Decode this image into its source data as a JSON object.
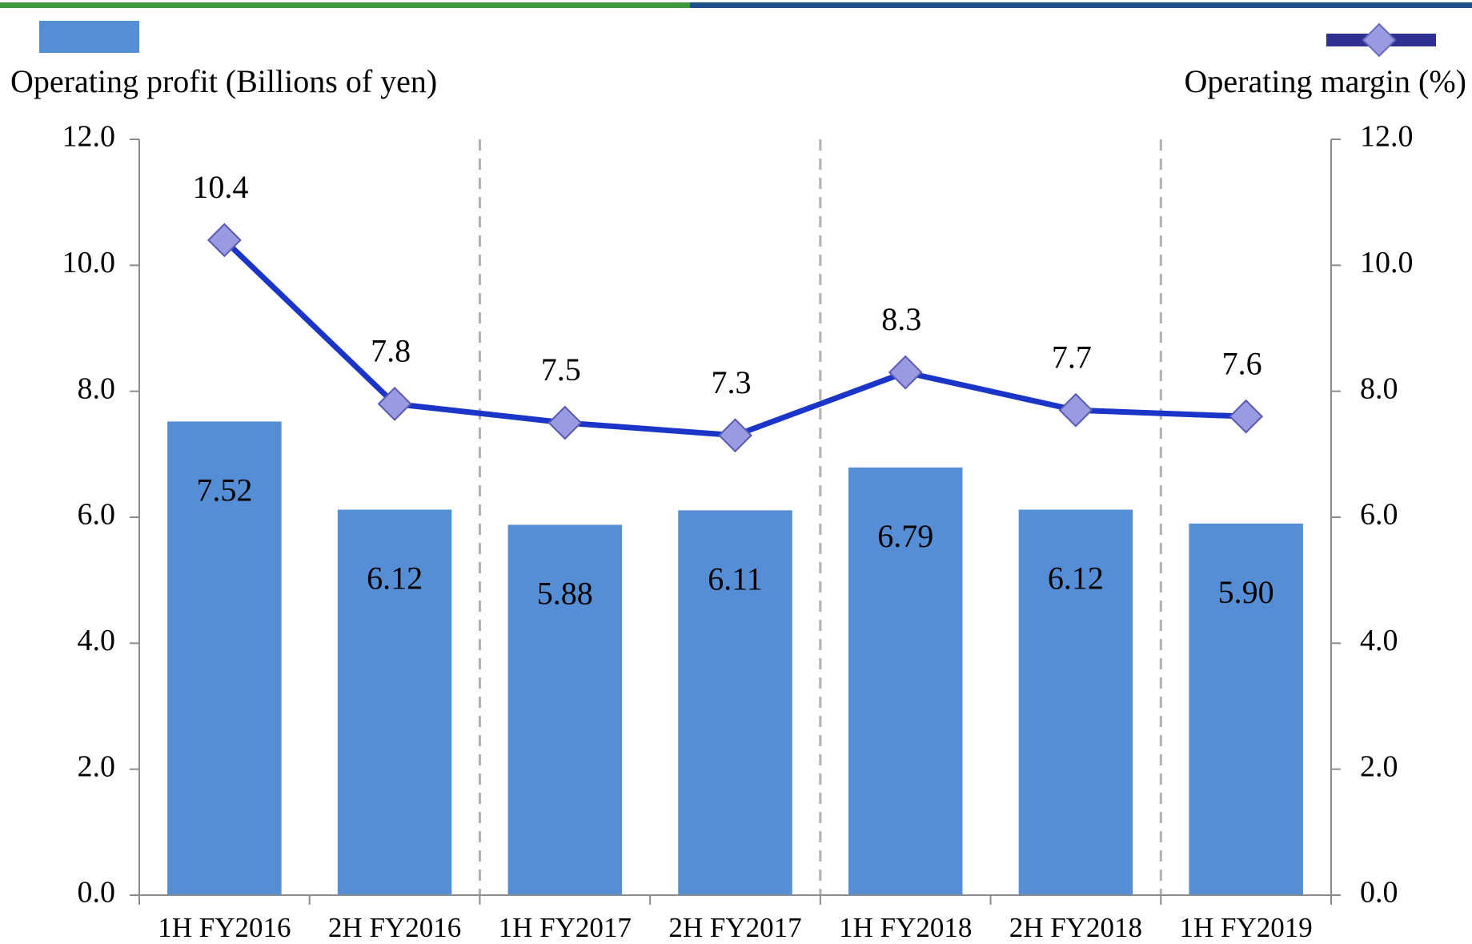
{
  "chart_data": {
    "type": "bar_line",
    "categories": [
      "1H FY2016",
      "2H FY2016",
      "1H FY2017",
      "2H FY2017",
      "1H FY2018",
      "2H FY2018",
      "1H FY2019"
    ],
    "series": [
      {
        "name": "Operating profit (Billions of yen)",
        "type": "bar",
        "color": "#558ed5",
        "values": [
          7.52,
          6.12,
          5.88,
          6.11,
          6.79,
          6.12,
          5.9
        ],
        "value_labels": [
          "7.52",
          "6.12",
          "5.88",
          "6.11",
          "6.79",
          "6.12",
          "5.90"
        ]
      },
      {
        "name": "Operating margin (%)",
        "type": "line",
        "axis": "y2",
        "color": "#1a35c8",
        "marker_color": "#9a9ae2",
        "values": [
          10.4,
          7.8,
          7.5,
          7.3,
          8.3,
          7.7,
          7.6
        ]
      }
    ],
    "ylim": [
      0,
      12
    ],
    "yticks": [
      {
        "value": 0,
        "label": "0.0"
      },
      {
        "value": 2,
        "label": "2.0"
      },
      {
        "value": 4,
        "label": "4.0"
      },
      {
        "value": 6,
        "label": "6.0"
      },
      {
        "value": 8,
        "label": "8.0"
      },
      {
        "value": 10,
        "label": "10.0"
      },
      {
        "value": 12,
        "label": "12.0"
      }
    ],
    "y2lim": [
      0,
      12
    ],
    "y2ticks": [
      {
        "value": 0,
        "label": "0.0"
      },
      {
        "value": 2,
        "label": "2.0"
      },
      {
        "value": 4,
        "label": "4.0"
      },
      {
        "value": 6,
        "label": "6.0"
      },
      {
        "value": 8,
        "label": "8.0"
      },
      {
        "value": 10,
        "label": "10.0"
      },
      {
        "value": 12,
        "label": "12.0"
      }
    ]
  }
}
